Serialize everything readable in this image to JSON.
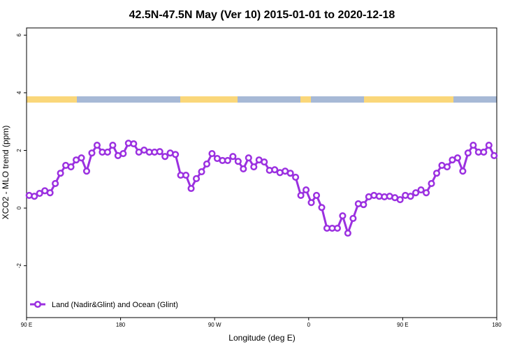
{
  "chart_data": {
    "type": "line",
    "title": "42.5N-47.5N May (Ver 10)   2015-01-01 to 2020-12-18",
    "x_label": "Longitude (deg E)",
    "y_label": "XCO2 - MLO trend (ppm)",
    "x": [
      92.5,
      97.5,
      102.5,
      107.5,
      112.5,
      117.5,
      122.5,
      127.5,
      132.5,
      137.5,
      142.5,
      147.5,
      152.5,
      157.5,
      162.5,
      167.5,
      172.5,
      177.5,
      182.5,
      187.5,
      192.5,
      197.5,
      202.5,
      207.5,
      212.5,
      217.5,
      222.5,
      227.5,
      232.5,
      237.5,
      242.5,
      247.5,
      252.5,
      257.5,
      262.5,
      267.5,
      272.5,
      277.5,
      282.5,
      287.5,
      292.5,
      297.5,
      302.5,
      307.5,
      312.5,
      317.5,
      322.5,
      327.5,
      332.5,
      337.5,
      342.5,
      347.5,
      352.5,
      357.5,
      362.5,
      367.5,
      372.5,
      377.5,
      382.5,
      387.5,
      392.5,
      397.5,
      402.5,
      407.5,
      412.5,
      417.5,
      422.5,
      427.5,
      432.5,
      437.5,
      442.5,
      447.5,
      452.5,
      457.5,
      462.5,
      467.5,
      472.5,
      477.5,
      482.5,
      487.5,
      492.5,
      497.5,
      502.5,
      507.5,
      512.5,
      517.5,
      522.5,
      527.5,
      532.5,
      537.5
    ],
    "series": [
      {
        "name": "Land (Nadir&Glint) and Ocean (Glint)",
        "color": "#9b30e0",
        "values": [
          0.44,
          0.41,
          0.51,
          0.6,
          0.53,
          0.85,
          1.21,
          1.48,
          1.43,
          1.67,
          1.74,
          1.28,
          1.91,
          2.18,
          1.94,
          1.94,
          2.18,
          1.82,
          1.89,
          2.25,
          2.23,
          1.94,
          2.01,
          1.94,
          1.94,
          1.96,
          1.79,
          1.91,
          1.86,
          1.14,
          1.14,
          0.68,
          1.02,
          1.26,
          1.53,
          1.89,
          1.72,
          1.65,
          1.65,
          1.79,
          1.62,
          1.36,
          1.74,
          1.43,
          1.67,
          1.6,
          1.31,
          1.33,
          1.23,
          1.28,
          1.21,
          1.07,
          0.44,
          0.63,
          0.19,
          0.44,
          0.02,
          -0.7,
          -0.7,
          -0.7,
          -0.27,
          -0.87,
          -0.36,
          0.15,
          0.12,
          0.39,
          0.44,
          0.41,
          0.39,
          0.41,
          0.36,
          0.29,
          0.44,
          0.41,
          0.53,
          0.63,
          0.53,
          0.85,
          1.21,
          1.48,
          1.43,
          1.67,
          1.74,
          1.28,
          1.91,
          2.18,
          1.94,
          1.94,
          2.18,
          1.82
        ]
      }
    ],
    "xlim": [
      90,
      540
    ],
    "xticks": [
      {
        "value": 90,
        "label": "90 E"
      },
      180,
      {
        "value": 270,
        "label": "90 W"
      },
      {
        "value": 360,
        "label": "0"
      },
      {
        "value": 450,
        "label": "90 E"
      },
      {
        "value": 540,
        "label": "180"
      }
    ],
    "ylim": [
      -3.8,
      6.25
    ],
    "yticks": [
      -2,
      0,
      2,
      4,
      6
    ],
    "legend": "bottom-left"
  }
}
